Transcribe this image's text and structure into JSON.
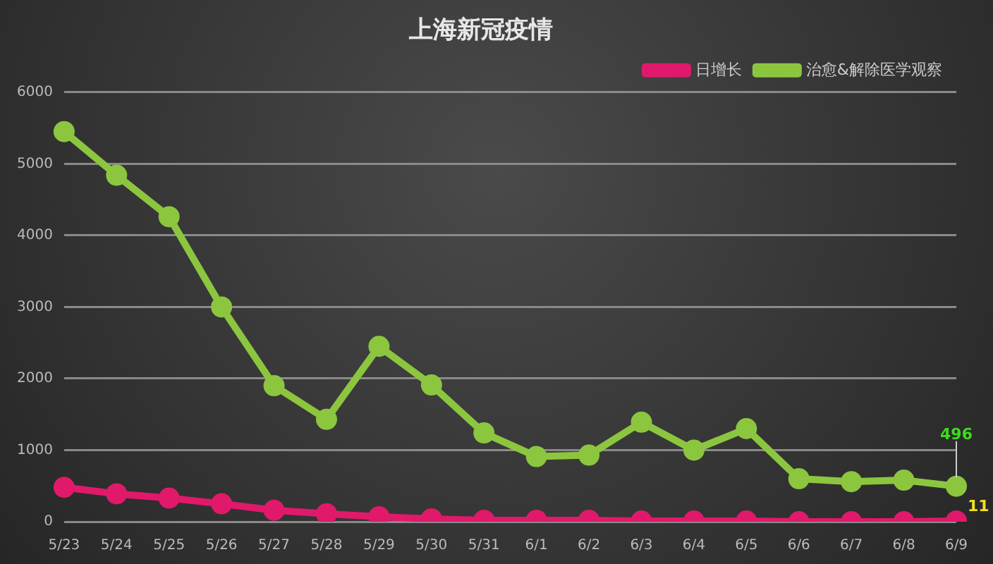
{
  "chart_data": {
    "type": "line",
    "title": "上海新冠疫情",
    "categories": [
      "5/23",
      "5/24",
      "5/25",
      "5/26",
      "5/27",
      "5/28",
      "5/29",
      "5/30",
      "5/31",
      "6/1",
      "6/2",
      "6/3",
      "6/4",
      "6/5",
      "6/6",
      "6/7",
      "6/8",
      "6/9"
    ],
    "series": [
      {
        "name": "日增长",
        "color": "#e0196b",
        "values": [
          480,
          390,
          330,
          250,
          160,
          110,
          70,
          40,
          20,
          20,
          20,
          10,
          10,
          10,
          0,
          0,
          0,
          11
        ]
      },
      {
        "name": "治愈&解除医学观察",
        "color": "#8cc63f",
        "values": [
          5450,
          4840,
          4260,
          3000,
          1900,
          1430,
          2450,
          1910,
          1240,
          910,
          930,
          1390,
          1000,
          1300,
          600,
          560,
          580,
          496
        ]
      }
    ],
    "ylim": [
      0,
      6000
    ],
    "yticks": [
      0,
      1000,
      2000,
      3000,
      4000,
      5000,
      6000
    ],
    "grid": "y",
    "legend": "top right",
    "marker": "circle",
    "line_style": "solid",
    "annotations": [
      {
        "text": "496",
        "x": "6/9",
        "y": 496
      },
      {
        "text": "11",
        "x": "6/9",
        "y": 11
      }
    ]
  }
}
